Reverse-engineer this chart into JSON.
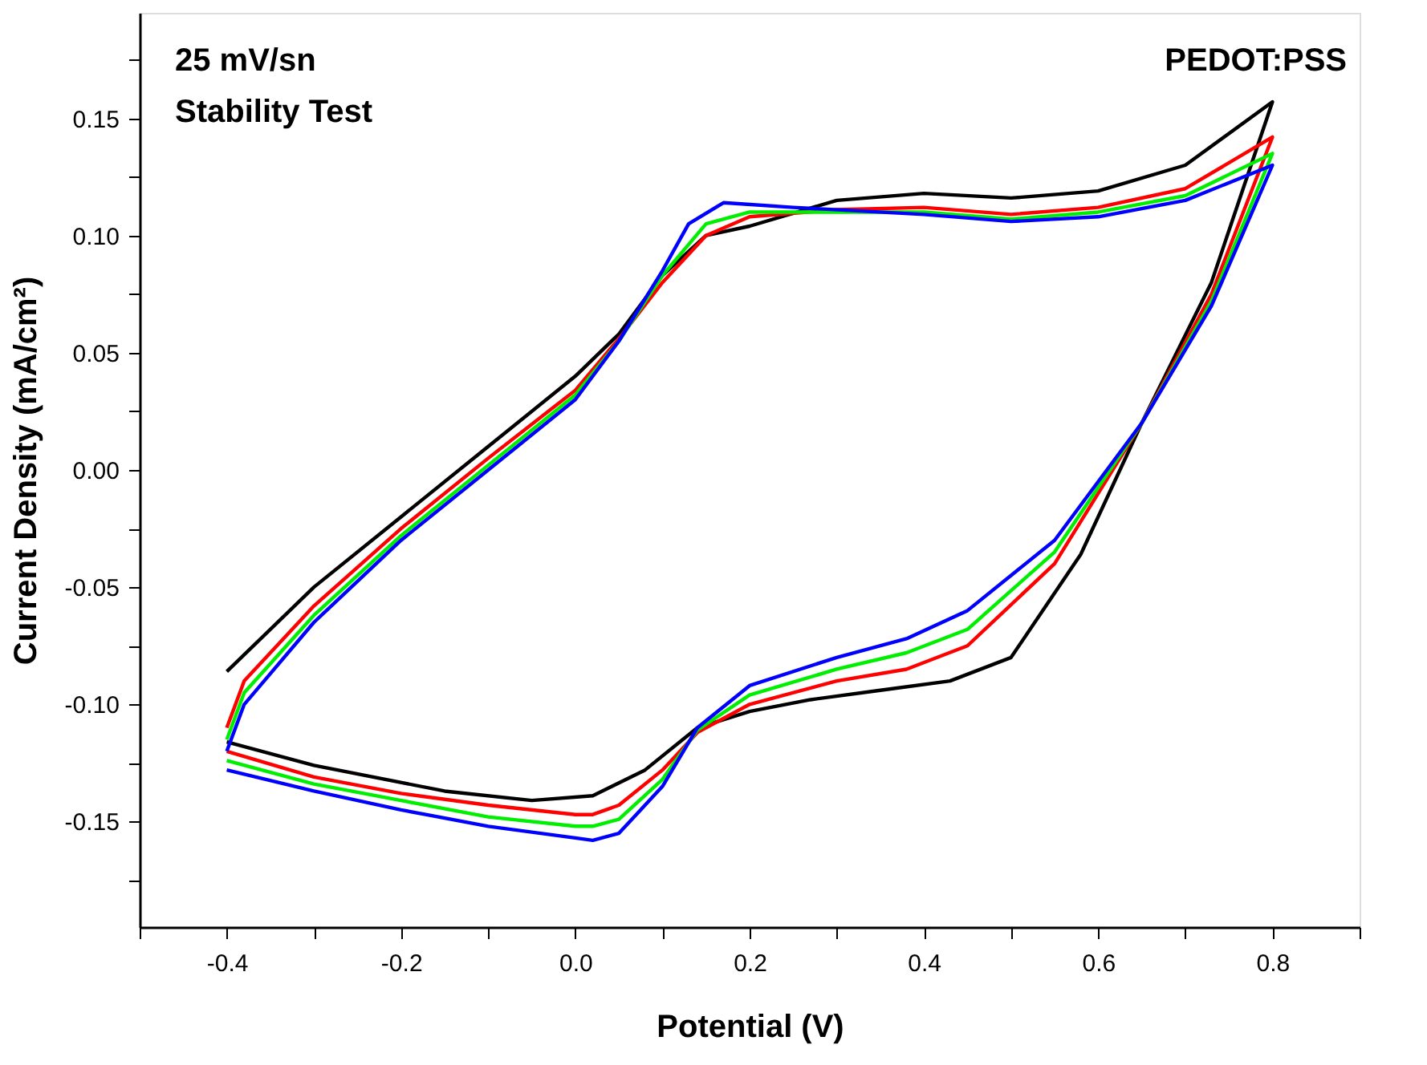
{
  "chart_data": {
    "type": "line",
    "xlabel": "Potential (V)",
    "ylabel": "Current Density (mA/cm²)",
    "annotations": [
      "25 mV/sn",
      "Stability Test",
      "PEDOT:PSS"
    ],
    "xlim": [
      -0.5,
      0.9
    ],
    "ylim": [
      -0.195,
      0.195
    ],
    "xticks": [
      {
        "value": -0.5,
        "label": null
      },
      -0.4,
      {
        "value": -0.3,
        "label": null
      },
      -0.2,
      {
        "value": -0.1,
        "label": null
      },
      {
        "value": 0,
        "label": "0.0"
      },
      {
        "value": 0.1,
        "label": null
      },
      0.2,
      {
        "value": 0.3,
        "label": null
      },
      0.4,
      {
        "value": 0.5,
        "label": null
      },
      0.6,
      {
        "value": 0.7,
        "label": null
      },
      0.8,
      {
        "value": 0.9,
        "label": null
      }
    ],
    "yticks": [
      {
        "value": -0.175,
        "label": null
      },
      -0.15,
      {
        "value": -0.125,
        "label": null
      },
      {
        "value": -0.1,
        "label": "-0.10"
      },
      {
        "value": -0.075,
        "label": null
      },
      -0.05,
      {
        "value": -0.025,
        "label": null
      },
      {
        "value": 0,
        "label": "0.00"
      },
      {
        "value": 0.025,
        "label": null
      },
      0.05,
      {
        "value": 0.075,
        "label": null
      },
      {
        "value": 0.1,
        "label": "0.10"
      },
      {
        "value": 0.125,
        "label": null
      },
      0.15,
      {
        "value": 0.175,
        "label": null
      }
    ],
    "grid": false,
    "legend": false,
    "marker": "none",
    "line_style": "solid",
    "series": [
      {
        "color": "#000000",
        "x": [
          -0.4,
          -0.3,
          -0.2,
          -0.1,
          0,
          0.05,
          0.1,
          0.15,
          0.2,
          0.3,
          0.4,
          0.5,
          0.6,
          0.7,
          0.8,
          0.73,
          0.65,
          0.58,
          0.5,
          0.43,
          0.35,
          0.27,
          0.2,
          0.14,
          0.08,
          0.02,
          -0.05,
          -0.15,
          -0.3,
          -0.4
        ],
        "values": [
          -0.086,
          -0.05,
          -0.02,
          0.01,
          0.04,
          0.058,
          0.083,
          0.1,
          0.104,
          0.115,
          0.118,
          0.116,
          0.119,
          0.13,
          0.157,
          0.08,
          0.02,
          -0.036,
          -0.08,
          -0.09,
          -0.094,
          -0.098,
          -0.103,
          -0.11,
          -0.128,
          -0.139,
          -0.141,
          -0.137,
          -0.126,
          -0.116
        ]
      },
      {
        "color": "#ff0000",
        "x": [
          -0.4,
          -0.38,
          -0.3,
          -0.2,
          -0.1,
          0,
          0.05,
          0.1,
          0.15,
          0.2,
          0.3,
          0.4,
          0.5,
          0.6,
          0.7,
          0.8,
          0.73,
          0.65,
          0.55,
          0.45,
          0.38,
          0.3,
          0.2,
          0.14,
          0.1,
          0.05,
          0.02,
          0,
          -0.1,
          -0.2,
          -0.3,
          -0.4
        ],
        "values": [
          -0.11,
          -0.09,
          -0.058,
          -0.025,
          0.005,
          0.034,
          0.056,
          0.08,
          0.1,
          0.108,
          0.111,
          0.112,
          0.109,
          0.112,
          0.12,
          0.142,
          0.075,
          0.02,
          -0.04,
          -0.075,
          -0.085,
          -0.09,
          -0.1,
          -0.112,
          -0.128,
          -0.143,
          -0.147,
          -0.147,
          -0.143,
          -0.138,
          -0.131,
          -0.12
        ]
      },
      {
        "color": "#00ee00",
        "x": [
          -0.4,
          -0.38,
          -0.3,
          -0.2,
          -0.1,
          0,
          0.05,
          0.1,
          0.15,
          0.2,
          0.3,
          0.4,
          0.5,
          0.6,
          0.7,
          0.8,
          0.73,
          0.65,
          0.55,
          0.45,
          0.38,
          0.3,
          0.2,
          0.14,
          0.1,
          0.05,
          0.02,
          0,
          -0.1,
          -0.2,
          -0.3,
          -0.4
        ],
        "values": [
          -0.115,
          -0.095,
          -0.062,
          -0.028,
          0.002,
          0.032,
          0.055,
          0.083,
          0.105,
          0.11,
          0.11,
          0.11,
          0.107,
          0.11,
          0.117,
          0.135,
          0.072,
          0.02,
          -0.035,
          -0.068,
          -0.078,
          -0.085,
          -0.096,
          -0.111,
          -0.132,
          -0.149,
          -0.152,
          -0.152,
          -0.148,
          -0.141,
          -0.134,
          -0.124
        ]
      },
      {
        "color": "#0000ff",
        "x": [
          -0.4,
          -0.38,
          -0.3,
          -0.2,
          -0.1,
          0,
          0.05,
          0.1,
          0.13,
          0.17,
          0.25,
          0.4,
          0.5,
          0.6,
          0.7,
          0.8,
          0.73,
          0.65,
          0.55,
          0.45,
          0.38,
          0.3,
          0.2,
          0.14,
          0.1,
          0.05,
          0.02,
          0,
          -0.1,
          -0.2,
          -0.3,
          -0.4
        ],
        "values": [
          -0.12,
          -0.1,
          -0.065,
          -0.03,
          0.0,
          0.03,
          0.055,
          0.085,
          0.105,
          0.114,
          0.112,
          0.109,
          0.106,
          0.108,
          0.115,
          0.13,
          0.07,
          0.02,
          -0.03,
          -0.06,
          -0.072,
          -0.08,
          -0.092,
          -0.11,
          -0.135,
          -0.155,
          -0.158,
          -0.157,
          -0.152,
          -0.145,
          -0.137,
          -0.128
        ]
      }
    ]
  }
}
